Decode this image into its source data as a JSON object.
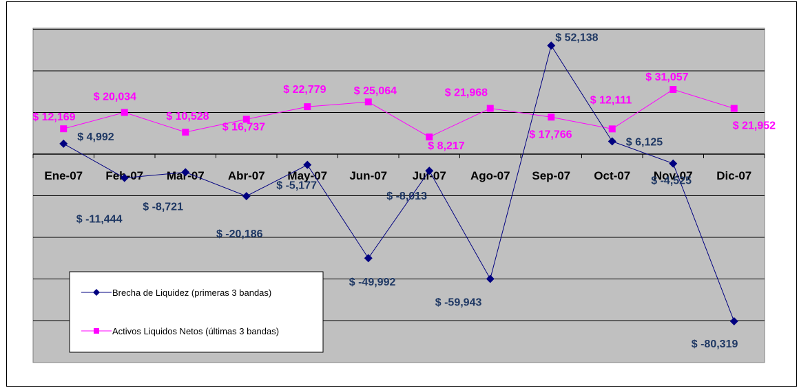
{
  "chart_data": {
    "type": "line",
    "categories": [
      "Ene-07",
      "Feb-07",
      "Mar-07",
      "Abr-07",
      "May-07",
      "Jun-07",
      "Jul-07",
      "Ago-07",
      "Sep-07",
      "Oct-07",
      "Nov-07",
      "Dic-07"
    ],
    "series": [
      {
        "name": "Brecha de Liquidez (primeras 3 bandas)",
        "values": [
          4992,
          -11444,
          -8721,
          -20186,
          -5177,
          -49992,
          -8013,
          -59943,
          52138,
          6125,
          -4525,
          -80319
        ],
        "labels": [
          "$ 4,992",
          "$ -11,444",
          "$ -8,721",
          "$ -20,186",
          "$ -5,177",
          "$ -49,992",
          "$ -8,013",
          "$ -59,943",
          "$ 52,138",
          "$ 6,125",
          "$ -4,525",
          "$ -80,319"
        ],
        "color": "#000080",
        "label_color": "#1F3864",
        "marker": "diamond"
      },
      {
        "name": "Activos Liquidos Netos (últimas 3 bandas)",
        "values": [
          12169,
          20034,
          10528,
          16737,
          22779,
          25064,
          8217,
          21968,
          17766,
          12111,
          31057,
          21952
        ],
        "labels": [
          "$ 12,169",
          "$ 20,034",
          "$ 10,528",
          "$ 16,737",
          "$ 22,779",
          "$ 25,064",
          "$ 8,217",
          "$ 21,968",
          "$ 17,766",
          "$ 12,111",
          "$ 31,057",
          "$ 21,952"
        ],
        "color": "#FF00FF",
        "label_color": "#FF00FF",
        "marker": "square"
      }
    ],
    "ylim": [
      -80000,
      60000
    ],
    "y_grid_step": 20000,
    "grid": true,
    "plot_background": "#C0C0C0",
    "legend_position": "bottom-left"
  }
}
